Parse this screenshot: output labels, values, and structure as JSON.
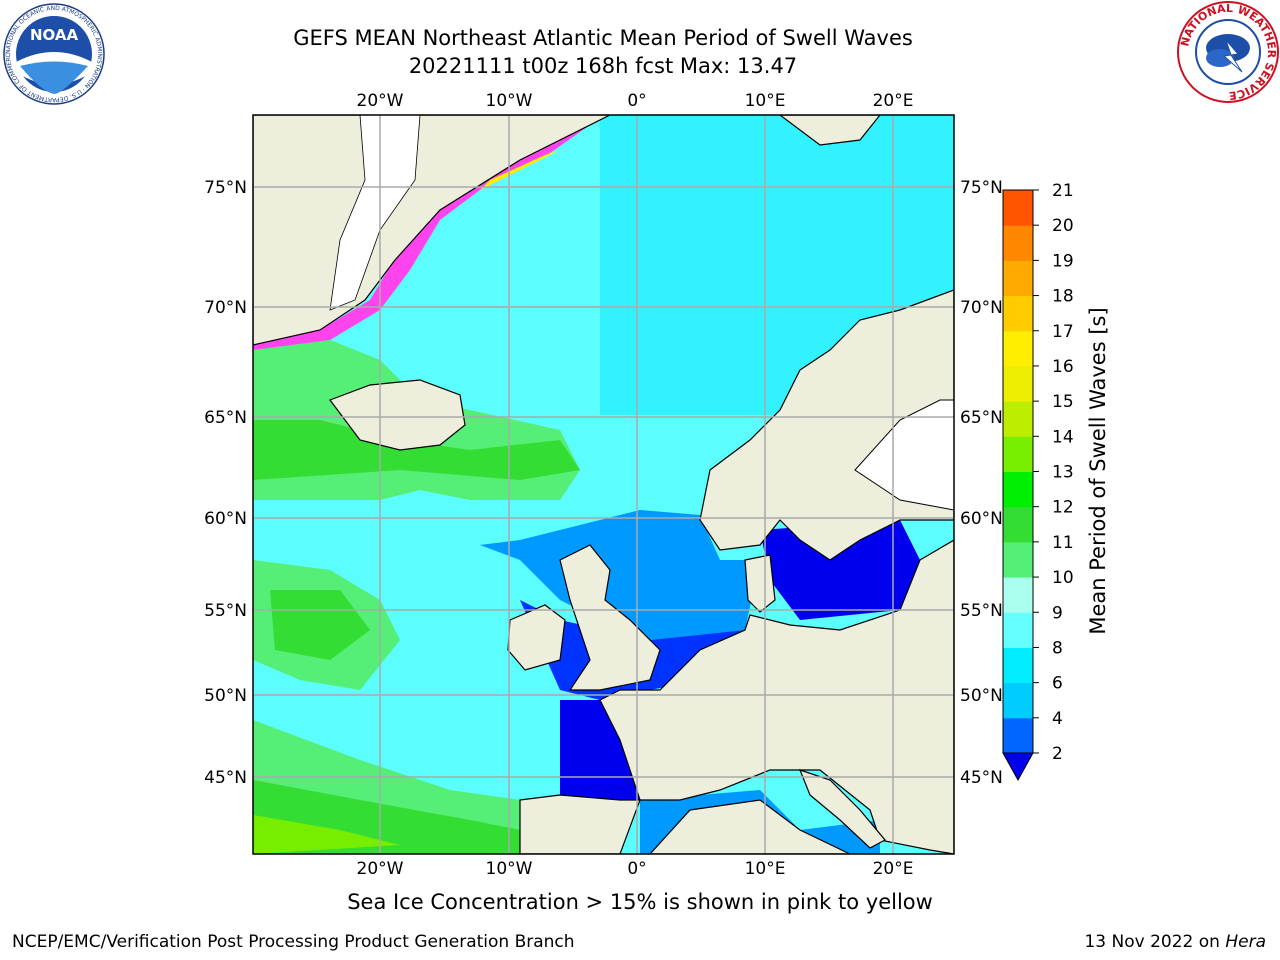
{
  "header": {
    "title_line1": "GEFS MEAN Northeast Atlantic Mean Period of Swell Waves",
    "title_line2": "20221111 t00z 168h fcst   Max: 13.47"
  },
  "logos": {
    "noaa": {
      "text": "NOAA",
      "ring_text": "NATIONAL OCEANIC AND ATMOSPHERIC ADMINISTRATION · U.S. DEPARTMENT OF COMMERCE"
    },
    "nws": {
      "ring_text": "NATIONAL WEATHER SERVICE"
    }
  },
  "map": {
    "lon_labels": [
      "20°W",
      "10°W",
      "0°",
      "10°E",
      "20°E"
    ],
    "lat_labels": [
      "75°N",
      "70°N",
      "65°N",
      "60°N",
      "55°N",
      "50°N",
      "45°N"
    ],
    "colors": {
      "land": "#eeeedd",
      "ocean_mid": "#5cfdfd",
      "grid": "#aaaaaa"
    }
  },
  "colorbar": {
    "label": "Mean Period of Swell Waves [s]",
    "ticks": [
      "2",
      "4",
      "6",
      "8",
      "9",
      "10",
      "11",
      "12",
      "13",
      "14",
      "15",
      "16",
      "17",
      "18",
      "19",
      "20",
      "21"
    ],
    "colors": [
      "#0066ff",
      "#00ccff",
      "#00eeff",
      "#66ffff",
      "#aaffee",
      "#55ee77",
      "#33dd33",
      "#00ee00",
      "#77ee00",
      "#bbee00",
      "#eeee00",
      "#ffee00",
      "#ffcc00",
      "#ffaa00",
      "#ff8800",
      "#ff5500",
      "#ff2200",
      "#ff0000"
    ],
    "under_color": "#0000ee"
  },
  "footer": {
    "ice_note": "Sea Ice Concentration > 15% is shown in pink to yellow",
    "left": "NCEP/EMC/Verification Post Processing Product Generation Branch",
    "right_date": "13 Nov 2022 on",
    "right_host": "Hera"
  }
}
